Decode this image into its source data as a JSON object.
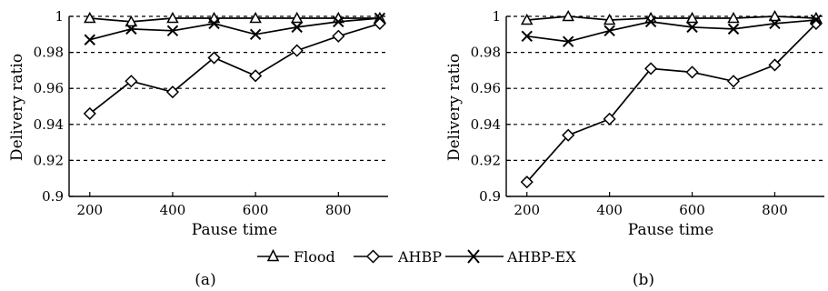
{
  "chart_data": [
    {
      "type": "line",
      "xlabel": "Pause time",
      "ylabel": "Delivery ratio",
      "x": [
        200,
        300,
        400,
        500,
        600,
        700,
        800,
        900
      ],
      "xticks": [
        200,
        400,
        600,
        800
      ],
      "yticks": [
        0.9,
        0.92,
        0.94,
        0.96,
        0.98,
        1
      ],
      "ytick_labels": [
        "0.9",
        "0.92",
        "0.94",
        "0.96",
        "0.98",
        "1"
      ],
      "xlim": [
        150,
        920
      ],
      "ylim": [
        0.9,
        1.0
      ],
      "grid": "horizontal dashed",
      "caption": "(a)",
      "series": [
        {
          "name": "Flood",
          "marker": "triangle",
          "values": [
            0.999,
            0.997,
            0.999,
            0.999,
            0.999,
            0.999,
            0.999,
            0.999
          ]
        },
        {
          "name": "AHBP",
          "marker": "diamond",
          "values": [
            0.946,
            0.964,
            0.958,
            0.977,
            0.967,
            0.981,
            0.989,
            0.996
          ]
        },
        {
          "name": "AHBP-EX",
          "marker": "x",
          "values": [
            0.987,
            0.993,
            0.992,
            0.996,
            0.99,
            0.994,
            0.997,
            0.999
          ]
        }
      ]
    },
    {
      "type": "line",
      "xlabel": "Pause time",
      "ylabel": "Delivery ratio",
      "x": [
        200,
        300,
        400,
        500,
        600,
        700,
        800,
        900
      ],
      "xticks": [
        200,
        400,
        600,
        800
      ],
      "yticks": [
        0.9,
        0.92,
        0.94,
        0.96,
        0.98,
        1
      ],
      "ytick_labels": [
        "0.9",
        "0.92",
        "0.94",
        "0.96",
        "0.98",
        "1"
      ],
      "xlim": [
        150,
        920
      ],
      "ylim": [
        0.9,
        1.0
      ],
      "grid": "horizontal dashed",
      "caption": "(b)",
      "series": [
        {
          "name": "Flood",
          "marker": "triangle",
          "values": [
            0.998,
            1.0,
            0.998,
            0.999,
            0.999,
            0.999,
            1.0,
            0.999
          ]
        },
        {
          "name": "AHBP",
          "marker": "diamond",
          "values": [
            0.908,
            0.934,
            0.943,
            0.971,
            0.969,
            0.964,
            0.973,
            0.996
          ]
        },
        {
          "name": "AHBP-EX",
          "marker": "x",
          "values": [
            0.989,
            0.986,
            0.992,
            0.997,
            0.994,
            0.993,
            0.996,
            0.998
          ]
        }
      ]
    }
  ],
  "legend": {
    "position": "bottom-center",
    "items": [
      "Flood",
      "AHBP",
      "AHBP-EX"
    ]
  },
  "colors": {
    "line": "#000000",
    "grid": "#000000",
    "background": "#ffffff"
  }
}
